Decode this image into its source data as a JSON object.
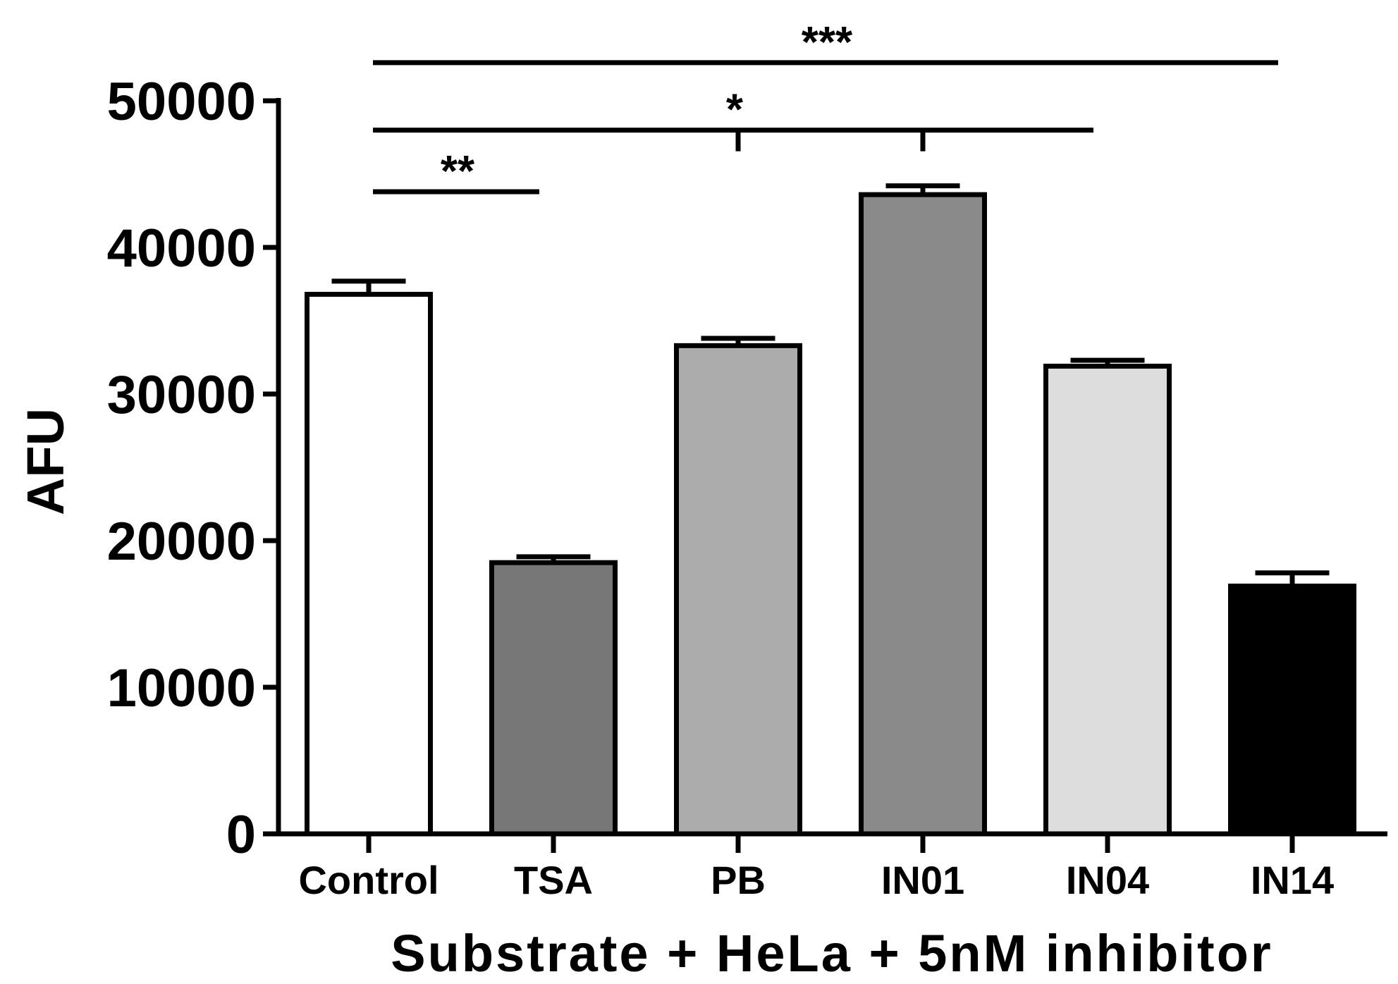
{
  "chart_data": {
    "type": "bar",
    "title": "",
    "xlabel": "Substrate + HeLa + 5nM inhibitor",
    "ylabel": "AFU",
    "ylim": [
      0,
      50000
    ],
    "yticks": [
      0,
      10000,
      20000,
      30000,
      40000,
      50000
    ],
    "ytick_labels": [
      "0",
      "10000",
      "20000",
      "30000",
      "40000",
      "50000"
    ],
    "grid": false,
    "categories": [
      "Control",
      "TSA",
      "PB",
      "IN01",
      "IN04",
      "IN14"
    ],
    "values": [
      36800,
      18500,
      33300,
      43600,
      31900,
      16900
    ],
    "errors": [
      900,
      400,
      500,
      600,
      400,
      900
    ],
    "colors": [
      "#ffffff",
      "#777777",
      "#acacac",
      "#8a8a8a",
      "#dddddd",
      "#000000"
    ],
    "significance": [
      {
        "label": "**",
        "from": "Control",
        "to": "TSA",
        "y": 43800
      },
      {
        "label": "*",
        "from": "Control",
        "to": "IN04",
        "y": 48000,
        "ticks_at": [
          "PB",
          "IN01"
        ]
      },
      {
        "label": "***",
        "from": "Control",
        "to": "IN14",
        "y": 52600
      }
    ]
  }
}
